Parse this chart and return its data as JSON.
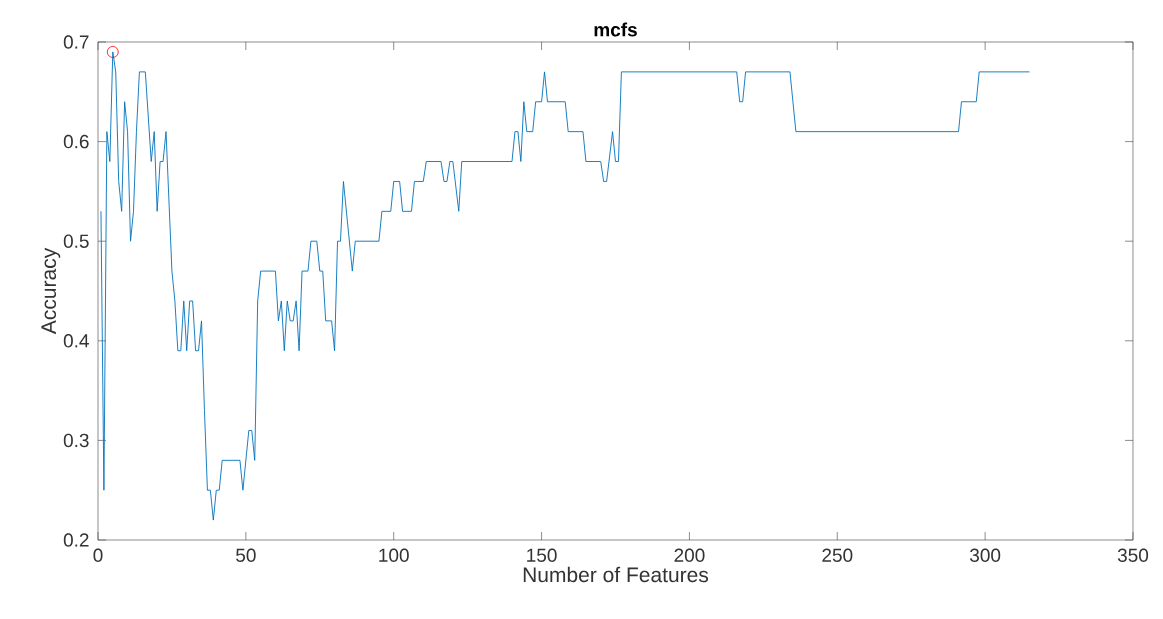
{
  "chart_data": {
    "type": "line",
    "title": "mcfs",
    "xlabel": "Number of Features",
    "ylabel": "Accuracy",
    "xlim": [
      0,
      350
    ],
    "xticks": [
      0,
      50,
      100,
      150,
      200,
      250,
      300,
      350
    ],
    "ylim": [
      0.2,
      0.7
    ],
    "yticks": [
      0.2,
      0.3,
      0.4,
      0.5,
      0.6,
      0.7
    ],
    "grid": false,
    "series": [
      {
        "color": "#0072bd",
        "line_style": "solid",
        "x": [
          1,
          2,
          3,
          4,
          5,
          6,
          7,
          8,
          9,
          10,
          11,
          12,
          13,
          14,
          16,
          18,
          19,
          20,
          21,
          22,
          23,
          25,
          26,
          27,
          28,
          29,
          30,
          31,
          32,
          33,
          34,
          35,
          36,
          37,
          38,
          39,
          40,
          41,
          42,
          48,
          49,
          51,
          52,
          53,
          54,
          55,
          60,
          61,
          62,
          63,
          64,
          65,
          66,
          67,
          68,
          69,
          71,
          72,
          74,
          75,
          76,
          77,
          79,
          80,
          81,
          82,
          83,
          86,
          87,
          95,
          96,
          99,
          100,
          102,
          103,
          106,
          107,
          110,
          111,
          116,
          117,
          118,
          119,
          120,
          122,
          123,
          140,
          141,
          142,
          143,
          144,
          145,
          147,
          148,
          150,
          151,
          152,
          158,
          159,
          164,
          165,
          170,
          171,
          172,
          174,
          175,
          176,
          177,
          216,
          217,
          218,
          219,
          234,
          236,
          291,
          292,
          297,
          298,
          315
        ],
        "values": [
          0.53,
          0.25,
          0.61,
          0.58,
          0.69,
          0.67,
          0.56,
          0.53,
          0.64,
          0.61,
          0.5,
          0.53,
          0.61,
          0.67,
          0.67,
          0.58,
          0.61,
          0.53,
          0.58,
          0.58,
          0.61,
          0.47,
          0.44,
          0.39,
          0.39,
          0.44,
          0.39,
          0.44,
          0.44,
          0.39,
          0.39,
          0.42,
          0.33,
          0.25,
          0.25,
          0.22,
          0.25,
          0.25,
          0.28,
          0.28,
          0.25,
          0.31,
          0.31,
          0.28,
          0.44,
          0.47,
          0.47,
          0.42,
          0.44,
          0.39,
          0.44,
          0.42,
          0.42,
          0.44,
          0.39,
          0.47,
          0.47,
          0.5,
          0.5,
          0.47,
          0.47,
          0.42,
          0.42,
          0.39,
          0.5,
          0.5,
          0.56,
          0.47,
          0.5,
          0.5,
          0.53,
          0.53,
          0.56,
          0.56,
          0.53,
          0.53,
          0.56,
          0.56,
          0.58,
          0.58,
          0.56,
          0.56,
          0.58,
          0.58,
          0.53,
          0.58,
          0.58,
          0.61,
          0.61,
          0.58,
          0.64,
          0.61,
          0.61,
          0.64,
          0.64,
          0.67,
          0.64,
          0.64,
          0.61,
          0.61,
          0.58,
          0.58,
          0.56,
          0.56,
          0.61,
          0.58,
          0.58,
          0.67,
          0.67,
          0.64,
          0.64,
          0.67,
          0.67,
          0.61,
          0.61,
          0.64,
          0.64,
          0.67,
          0.67
        ]
      },
      {
        "type": "scatter",
        "color": "#ff0000",
        "marker": "circle",
        "x": [
          5
        ],
        "values": [
          0.69
        ]
      }
    ]
  }
}
